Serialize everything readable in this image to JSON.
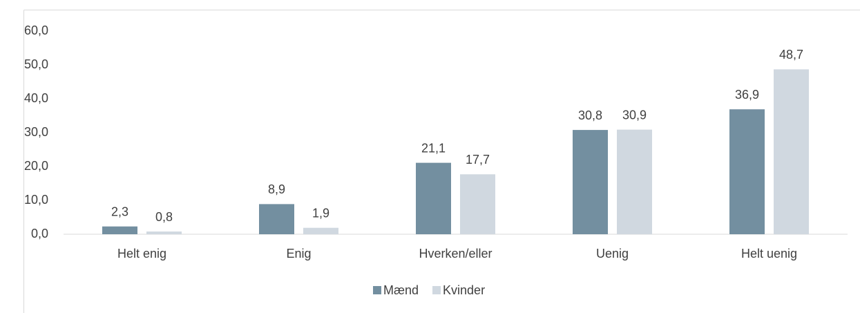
{
  "chart_data": {
    "type": "bar",
    "categories": [
      "Helt enig",
      "Enig",
      "Hverken/eller",
      "Uenig",
      "Helt uenig"
    ],
    "series": [
      {
        "name": "Mænd",
        "color": "#738fa0",
        "values": [
          2.3,
          8.9,
          21.1,
          30.8,
          36.9
        ],
        "value_labels": [
          "2,3",
          "8,9",
          "21,1",
          "30,8",
          "36,9"
        ]
      },
      {
        "name": "Kvinder",
        "color": "#d0d8e0",
        "values": [
          0.8,
          1.9,
          17.7,
          30.9,
          48.7
        ],
        "value_labels": [
          "0,8",
          "1,9",
          "17,7",
          "30,9",
          "48,7"
        ]
      }
    ],
    "ylim": [
      0,
      60
    ],
    "yticks": [
      {
        "value": 0,
        "label": "0,0"
      },
      {
        "value": 10,
        "label": "10,0"
      },
      {
        "value": 20,
        "label": "20,0"
      },
      {
        "value": 30,
        "label": "30,0"
      },
      {
        "value": 40,
        "label": "40,0"
      },
      {
        "value": 50,
        "label": "50,0"
      },
      {
        "value": 60,
        "label": "60,0"
      }
    ],
    "grid": false,
    "legend": "bottom"
  }
}
